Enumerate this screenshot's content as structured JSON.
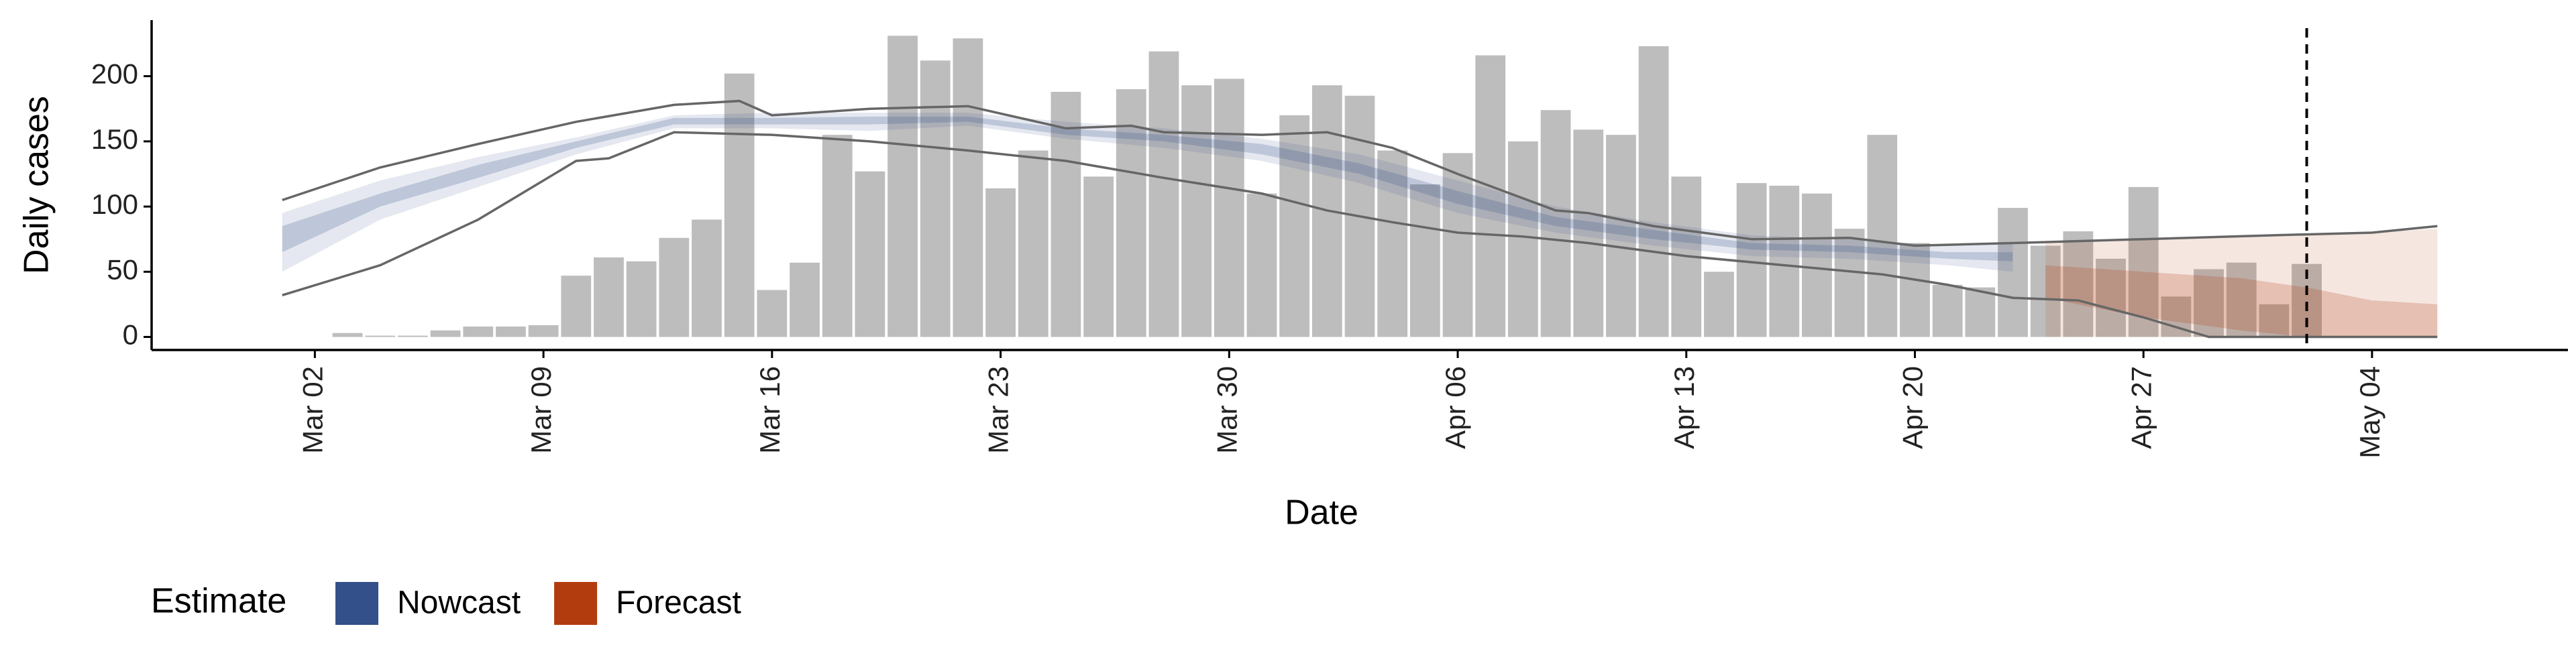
{
  "chart_data": {
    "type": "bar",
    "x_label": "Date",
    "y_label": "Daily cases",
    "color": "#bdbdbd",
    "x": [
      "Mar 03",
      "Mar 04",
      "Mar 05",
      "Mar 06",
      "Mar 07",
      "Mar 08",
      "Mar 09",
      "Mar 10",
      "Mar 11",
      "Mar 12",
      "Mar 13",
      "Mar 14",
      "Mar 15",
      "Mar 16",
      "Mar 17",
      "Mar 18",
      "Mar 19",
      "Mar 20",
      "Mar 21",
      "Mar 22",
      "Mar 23",
      "Mar 24",
      "Mar 25",
      "Mar 26",
      "Mar 27",
      "Mar 28",
      "Mar 29",
      "Mar 30",
      "Mar 31",
      "Apr 01",
      "Apr 02",
      "Apr 03",
      "Apr 04",
      "Apr 05",
      "Apr 06",
      "Apr 07",
      "Apr 08",
      "Apr 09",
      "Apr 10",
      "Apr 11",
      "Apr 12",
      "Apr 13",
      "Apr 14",
      "Apr 15",
      "Apr 16",
      "Apr 17",
      "Apr 18",
      "Apr 19",
      "Apr 20",
      "Apr 21",
      "Apr 22",
      "Apr 23",
      "Apr 24",
      "Apr 25",
      "Apr 26",
      "Apr 27",
      "Apr 28",
      "Apr 29",
      "Apr 30",
      "May 01",
      "May 02"
    ],
    "values": [
      3,
      1,
      1,
      5,
      8,
      8,
      9,
      47,
      61,
      58,
      76,
      90,
      202,
      36,
      57,
      155,
      127,
      231,
      212,
      229,
      114,
      143,
      188,
      123,
      190,
      219,
      193,
      198,
      110,
      170,
      193,
      185,
      143,
      117,
      141,
      216,
      150,
      174,
      159,
      155,
      223,
      123,
      50,
      118,
      116,
      110,
      83,
      155,
      72,
      40,
      38,
      99,
      70,
      81,
      60,
      115,
      31,
      52,
      57,
      25,
      56
    ],
    "xlim": [
      "Feb 26",
      "May 10"
    ],
    "xticks": [
      "Mar 02",
      "Mar 09",
      "Mar 16",
      "Mar 23",
      "Mar 30",
      "Apr 06",
      "Apr 13",
      "Apr 20",
      "Apr 27",
      "May 04"
    ],
    "ylim": [
      -10,
      243
    ],
    "yticks": [
      0,
      50,
      100,
      150,
      200
    ],
    "vline": "May 02",
    "bands": [
      {
        "name": "Nowcast",
        "color": "#34508a",
        "x": [
          "Mar 01",
          "Mar 04",
          "Mar 07",
          "Mar 10",
          "Mar 13",
          "Mar 16",
          "Mar 19",
          "Mar 22",
          "Mar 25",
          "Mar 28",
          "Mar 31",
          "Apr 03",
          "Apr 06",
          "Apr 09",
          "Apr 12",
          "Apr 15",
          "Apr 18",
          "Apr 21",
          "Apr 23"
        ],
        "lower_90": [
          50,
          90,
          115,
          140,
          160,
          160,
          158,
          162,
          152,
          145,
          135,
          118,
          95,
          80,
          70,
          62,
          60,
          55,
          50
        ],
        "upper_90": [
          95,
          120,
          138,
          153,
          170,
          172,
          172,
          172,
          165,
          160,
          152,
          140,
          120,
          100,
          88,
          78,
          75,
          70,
          72
        ],
        "lower_50": [
          65,
          100,
          122,
          145,
          163,
          163,
          163,
          165,
          155,
          150,
          140,
          125,
          102,
          85,
          75,
          67,
          65,
          60,
          58
        ],
        "upper_50": [
          85,
          110,
          132,
          150,
          168,
          168,
          169,
          169,
          160,
          155,
          148,
          133,
          112,
          92,
          82,
          72,
          70,
          65,
          65
        ]
      },
      {
        "name": "Forecast",
        "color": "#b33c0e",
        "x": [
          "Apr 24",
          "Apr 27",
          "Apr 30",
          "May 02",
          "May 04",
          "May 06"
        ],
        "lower_90": [
          0,
          0,
          0,
          0,
          0,
          0
        ],
        "upper_90": [
          72,
          75,
          77,
          78,
          80,
          83
        ],
        "lower_50": [
          30,
          15,
          5,
          0,
          0,
          0
        ],
        "upper_50": [
          55,
          50,
          45,
          38,
          28,
          25
        ]
      }
    ],
    "lines": [
      {
        "color": "#666666",
        "x": [
          "Mar 01",
          "Mar 04",
          "Mar 07",
          "Mar 10",
          "Mar 13",
          "Mar 15",
          "Mar 16",
          "Mar 19",
          "Mar 22",
          "Mar 25",
          "Mar 27",
          "Mar 28",
          "Mar 31",
          "Apr 02",
          "Apr 04",
          "Apr 06",
          "Apr 09",
          "Apr 10",
          "Apr 12",
          "Apr 15",
          "Apr 18",
          "Apr 20",
          "Apr 23",
          "Apr 27",
          "May 01",
          "May 04",
          "May 06"
        ],
        "values": [
          105,
          130,
          148,
          165,
          178,
          181,
          170,
          175,
          177,
          160,
          162,
          157,
          155,
          157,
          145,
          125,
          97,
          95,
          85,
          75,
          76,
          70,
          72,
          75,
          78,
          80,
          85
        ]
      },
      {
        "color": "#666666",
        "x": [
          "Mar 01",
          "Mar 04",
          "Mar 07",
          "Mar 10",
          "Mar 11",
          "Mar 13",
          "Mar 16",
          "Mar 19",
          "Mar 22",
          "Mar 25",
          "Mar 28",
          "Mar 31",
          "Apr 02",
          "Apr 04",
          "Apr 06",
          "Apr 08",
          "Apr 10",
          "Apr 13",
          "Apr 16",
          "Apr 19",
          "Apr 21",
          "Apr 23",
          "Apr 25",
          "Apr 27",
          "Apr 29",
          "May 06"
        ],
        "values": [
          32,
          55,
          90,
          135,
          137,
          157,
          155,
          150,
          143,
          135,
          122,
          110,
          97,
          88,
          80,
          77,
          72,
          62,
          55,
          48,
          40,
          30,
          28,
          15,
          0,
          0
        ]
      }
    ],
    "legend_title": "Estimate"
  }
}
